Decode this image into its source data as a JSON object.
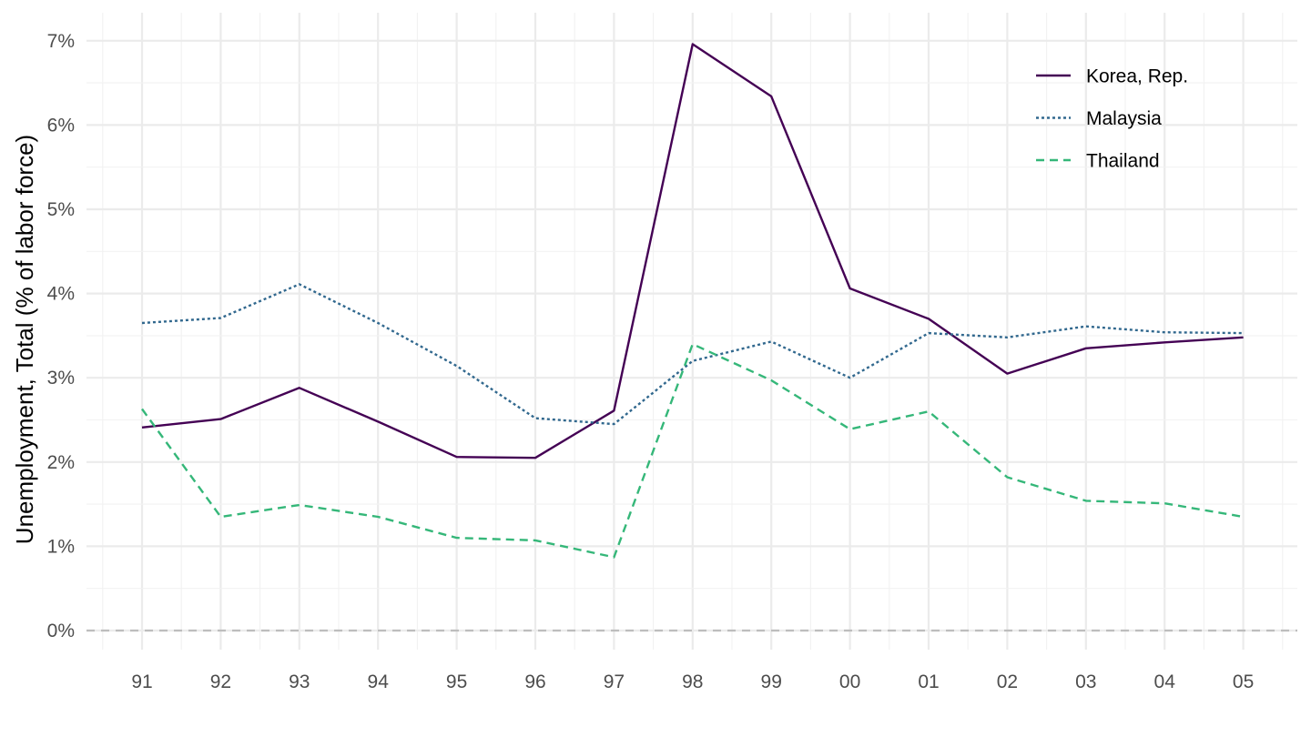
{
  "chart_data": {
    "type": "line",
    "title": "",
    "xlabel": "",
    "ylabel": "Unemployment, Total (% of labor force)",
    "categories": [
      "91",
      "92",
      "93",
      "94",
      "95",
      "96",
      "97",
      "98",
      "99",
      "00",
      "01",
      "02",
      "03",
      "04",
      "05"
    ],
    "ylim": [
      0,
      7
    ],
    "y_ticks": [
      "0%",
      "1%",
      "2%",
      "3%",
      "4%",
      "5%",
      "6%",
      "7%"
    ],
    "y_unit": "%",
    "grid": true,
    "legend_position": "top-right",
    "reference_line": {
      "y": 0,
      "style": "dashed",
      "color": "#bdbdbd"
    },
    "series": [
      {
        "name": "Korea, Rep.",
        "color": "#440154",
        "dash": "solid",
        "values": [
          2.41,
          2.51,
          2.88,
          2.48,
          2.06,
          2.05,
          2.61,
          6.96,
          6.34,
          4.06,
          3.7,
          3.05,
          3.35,
          3.42,
          3.48
        ]
      },
      {
        "name": "Malaysia",
        "color": "#31688e",
        "dash": "dotted",
        "values": [
          3.65,
          3.71,
          4.11,
          3.65,
          3.14,
          2.52,
          2.45,
          3.2,
          3.43,
          3.0,
          3.53,
          3.48,
          3.61,
          3.54,
          3.53
        ]
      },
      {
        "name": "Thailand",
        "color": "#35b779",
        "dash": "dashed",
        "values": [
          2.63,
          1.35,
          1.49,
          1.35,
          1.1,
          1.07,
          0.87,
          3.4,
          2.97,
          2.39,
          2.6,
          1.82,
          1.54,
          1.51,
          1.35
        ]
      }
    ]
  }
}
